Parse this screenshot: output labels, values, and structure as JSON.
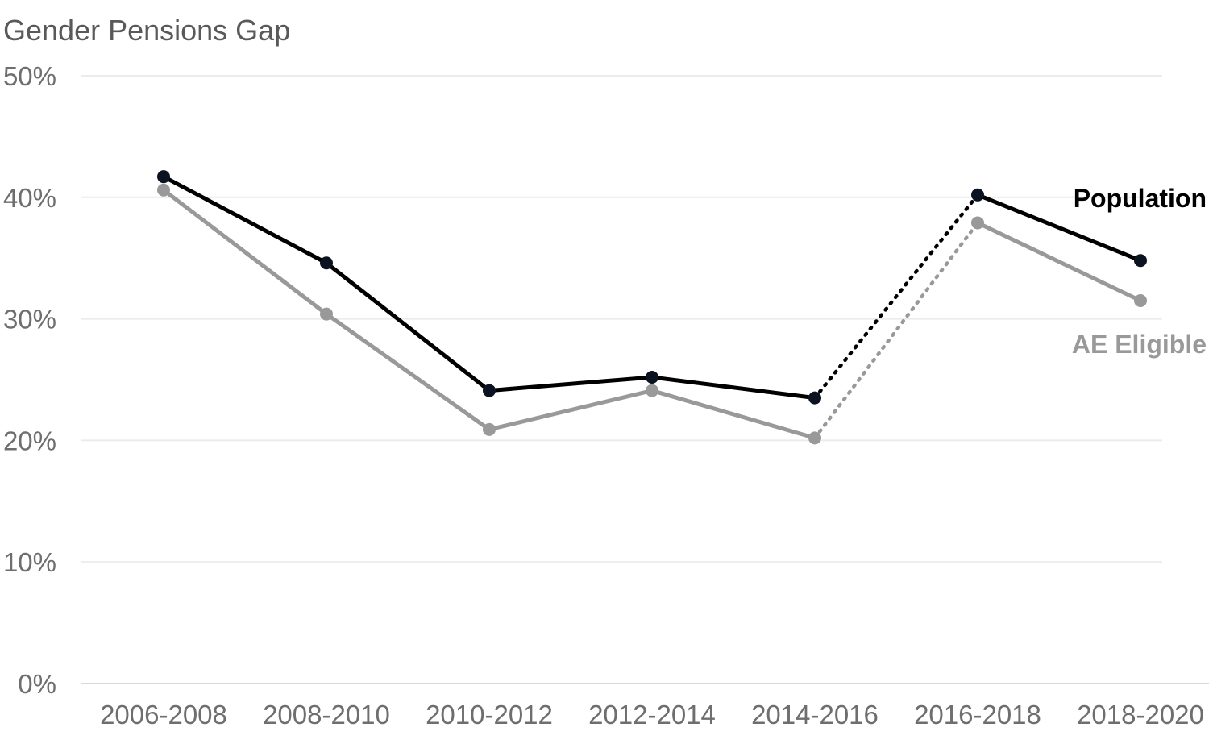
{
  "chart_data": {
    "type": "line",
    "title": "Gender Pensions Gap",
    "categories": [
      "2006-2008",
      "2008-2010",
      "2010-2012",
      "2012-2014",
      "2014-2016",
      "2016-2018",
      "2018-2020"
    ],
    "y_ticks": [
      "0%",
      "10%",
      "20%",
      "30%",
      "40%",
      "50%"
    ],
    "ylim": [
      0,
      50
    ],
    "y_unit": "%",
    "grid": true,
    "legend": "inline labels at right end of each series",
    "dotted_segment": [
      "2014-2016",
      "2016-2018"
    ],
    "series": [
      {
        "name": "Population",
        "color": "#000000",
        "values": [
          41.7,
          34.6,
          24.1,
          25.2,
          23.5,
          40.2,
          34.8
        ]
      },
      {
        "name": "AE Eligible",
        "color": "#999999",
        "values": [
          40.6,
          30.4,
          20.9,
          24.1,
          20.2,
          37.9,
          31.5
        ]
      }
    ]
  }
}
